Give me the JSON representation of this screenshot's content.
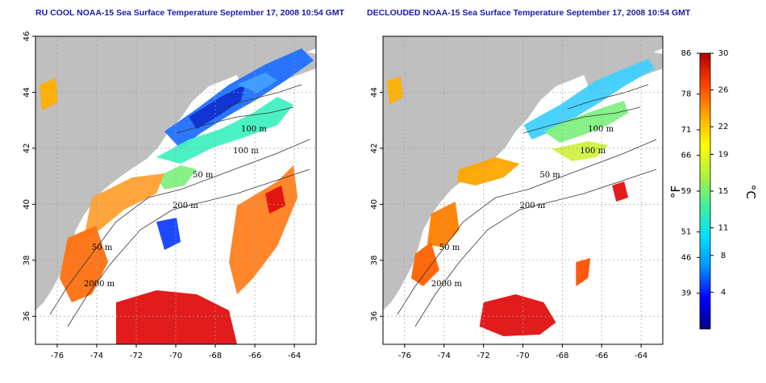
{
  "titles": {
    "left": "RU COOL NOAA-15 Sea Surface Temperature September 17, 2008 10:54 GMT",
    "right": "DECLOUDED NOAA-15 Sea Surface Temperature September 17, 2008 10:54 GMT"
  },
  "axes": {
    "lon_ticks": [
      "-76",
      "-74",
      "-72",
      "-70",
      "-68",
      "-66",
      "-64"
    ],
    "lat_ticks_left": [
      "46",
      "44",
      "42",
      "40",
      "38",
      "36"
    ],
    "lat_ticks_right": [
      "44",
      "42",
      "40",
      "38",
      "36"
    ],
    "lon_range": [
      -77.1,
      -62.9
    ],
    "lat_range": [
      35,
      46
    ]
  },
  "contour_labels": [
    "100 m",
    "100 m",
    "50 m",
    "200 m",
    "50 m",
    "2000 m"
  ],
  "colorbar": {
    "f_labels": [
      "86",
      "78",
      "71",
      "66",
      "59",
      "51",
      "46",
      "39"
    ],
    "c_labels": [
      "30",
      "26",
      "22",
      "19",
      "15",
      "11",
      "8",
      "4"
    ],
    "f_unit": "°F",
    "c_unit": "°C",
    "c_range": [
      0,
      30
    ],
    "stops": [
      "#00008b",
      "#0000ff",
      "#0090ff",
      "#00e0ff",
      "#40f0a0",
      "#b0f040",
      "#ffff00",
      "#ffa500",
      "#ff4000",
      "#b00000"
    ]
  },
  "colors": {
    "land": "#bfbfbf",
    "water_no_data": "#ffffff",
    "grid": "#a0a0a0",
    "title": "#1a1aa8"
  }
}
